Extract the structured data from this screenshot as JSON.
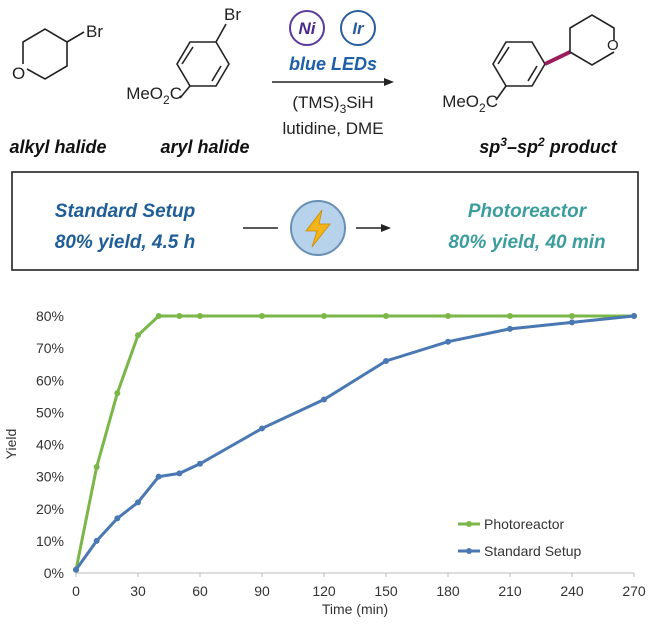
{
  "scheme": {
    "alkyl_br": "Br",
    "ring_o": "O",
    "aryl_br": "Br",
    "ester": [
      "MeO",
      "2",
      "C"
    ],
    "product_ester": [
      "MeO",
      "2",
      "C"
    ],
    "cat1": "Ni",
    "cat2": "Ir",
    "light": "blue LEDs",
    "reagent": [
      "(TMS)",
      "3",
      "SiH"
    ],
    "conditions": "lutidine, DME",
    "label_alkyl": "alkyl halide",
    "label_aryl": "aryl halide",
    "label_product": [
      "sp",
      "3",
      "–sp",
      "2",
      " product"
    ]
  },
  "comparison": {
    "left": {
      "title": "Standard Setup",
      "result": "80% yield, 4.5 h"
    },
    "right": {
      "title": "Photoreactor",
      "result": "80% yield, 40 min"
    }
  },
  "chart_data": {
    "type": "line",
    "x_label": "Time (min)",
    "y_label": "Yield",
    "x": [
      0,
      10,
      20,
      30,
      40,
      50,
      60,
      90,
      120,
      150,
      180,
      210,
      240,
      270
    ],
    "series": [
      {
        "name": "Photoreactor",
        "color": "#7ab648",
        "values": [
          1,
          33,
          56,
          74,
          80,
          80,
          80,
          80,
          80,
          80,
          80,
          80,
          80,
          80
        ]
      },
      {
        "name": "Standard Setup",
        "color": "#4a78b2",
        "values": [
          1,
          10,
          17,
          22,
          30,
          31,
          34,
          45,
          54,
          66,
          72,
          76,
          78,
          80
        ]
      }
    ],
    "xlim": [
      0,
      270
    ],
    "xticks": [
      0,
      30,
      60,
      90,
      120,
      150,
      180,
      210,
      240,
      270
    ],
    "ylim": [
      0,
      80
    ],
    "yticks": [
      {
        "value": 0,
        "label": "0%"
      },
      {
        "value": 10,
        "label": "10%"
      },
      {
        "value": 20,
        "label": "20%"
      },
      {
        "value": 30,
        "label": "30%"
      },
      {
        "value": 40,
        "label": "40%"
      },
      {
        "value": 50,
        "label": "50%"
      },
      {
        "value": 60,
        "label": "60%"
      },
      {
        "value": 70,
        "label": "70%"
      },
      {
        "value": 80,
        "label": "80%"
      }
    ],
    "grid": false,
    "legend": "lower-right"
  }
}
